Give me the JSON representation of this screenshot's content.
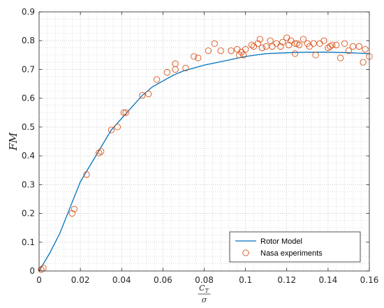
{
  "chart_data": {
    "type": "line",
    "ylabel": "FM",
    "xlabel_num": "C",
    "xlabel_sub": "T",
    "xlabel_den": "σ",
    "xlim": [
      0,
      0.16
    ],
    "ylim": [
      0,
      0.9
    ],
    "grid": "minor-dotted",
    "legend_position": "bottom-right",
    "x_ticks": [
      0,
      0.02,
      0.04,
      0.06,
      0.08,
      0.1,
      0.12,
      0.14,
      0.16
    ],
    "x_tick_labels": [
      "0",
      "0.02",
      "0.04",
      "0.06",
      "0.08",
      "0.1",
      "0.12",
      "0.14",
      "0.16"
    ],
    "y_ticks": [
      0,
      0.1,
      0.2,
      0.3,
      0.4,
      0.5,
      0.6,
      0.7,
      0.8,
      0.9
    ],
    "y_tick_labels": [
      "0",
      "0.1",
      "0.2",
      "0.3",
      "0.4",
      "0.5",
      "0.6",
      "0.7",
      "0.8",
      "0.9"
    ],
    "series": [
      {
        "name": "Rotor Model",
        "kind": "line",
        "color": "#0072BD",
        "x": [
          0,
          0.005,
          0.01,
          0.015,
          0.02,
          0.025,
          0.03,
          0.035,
          0.04,
          0.045,
          0.05,
          0.055,
          0.06,
          0.065,
          0.07,
          0.08,
          0.09,
          0.1,
          0.11,
          0.12,
          0.13,
          0.14,
          0.15,
          0.16
        ],
        "y": [
          0,
          0.06,
          0.13,
          0.22,
          0.31,
          0.37,
          0.43,
          0.49,
          0.53,
          0.57,
          0.61,
          0.64,
          0.66,
          0.68,
          0.695,
          0.715,
          0.73,
          0.745,
          0.755,
          0.758,
          0.76,
          0.76,
          0.758,
          0.755
        ]
      },
      {
        "name": "Nasa experiments",
        "kind": "scatter",
        "color": "#D95319",
        "x": [
          0.001,
          0.002,
          0.016,
          0.017,
          0.023,
          0.029,
          0.03,
          0.035,
          0.038,
          0.041,
          0.042,
          0.05,
          0.053,
          0.057,
          0.062,
          0.066,
          0.066,
          0.071,
          0.075,
          0.077,
          0.082,
          0.085,
          0.088,
          0.093,
          0.096,
          0.097,
          0.098,
          0.099,
          0.1,
          0.103,
          0.104,
          0.106,
          0.107,
          0.108,
          0.11,
          0.112,
          0.113,
          0.115,
          0.117,
          0.118,
          0.12,
          0.121,
          0.122,
          0.124,
          0.124,
          0.125,
          0.126,
          0.128,
          0.13,
          0.131,
          0.133,
          0.134,
          0.136,
          0.138,
          0.14,
          0.141,
          0.142,
          0.144,
          0.146,
          0.148,
          0.15,
          0.152,
          0.155,
          0.157,
          0.158,
          0.16
        ],
        "y": [
          0.005,
          0.01,
          0.2,
          0.215,
          0.335,
          0.41,
          0.415,
          0.49,
          0.5,
          0.55,
          0.55,
          0.61,
          0.615,
          0.665,
          0.69,
          0.7,
          0.72,
          0.705,
          0.745,
          0.74,
          0.765,
          0.79,
          0.765,
          0.765,
          0.77,
          0.75,
          0.76,
          0.75,
          0.77,
          0.785,
          0.78,
          0.79,
          0.805,
          0.775,
          0.78,
          0.8,
          0.78,
          0.79,
          0.78,
          0.795,
          0.81,
          0.785,
          0.8,
          0.79,
          0.755,
          0.79,
          0.785,
          0.805,
          0.79,
          0.78,
          0.79,
          0.75,
          0.79,
          0.8,
          0.775,
          0.78,
          0.785,
          0.785,
          0.74,
          0.79,
          0.765,
          0.78,
          0.78,
          0.725,
          0.77,
          0.745
        ]
      }
    ]
  }
}
